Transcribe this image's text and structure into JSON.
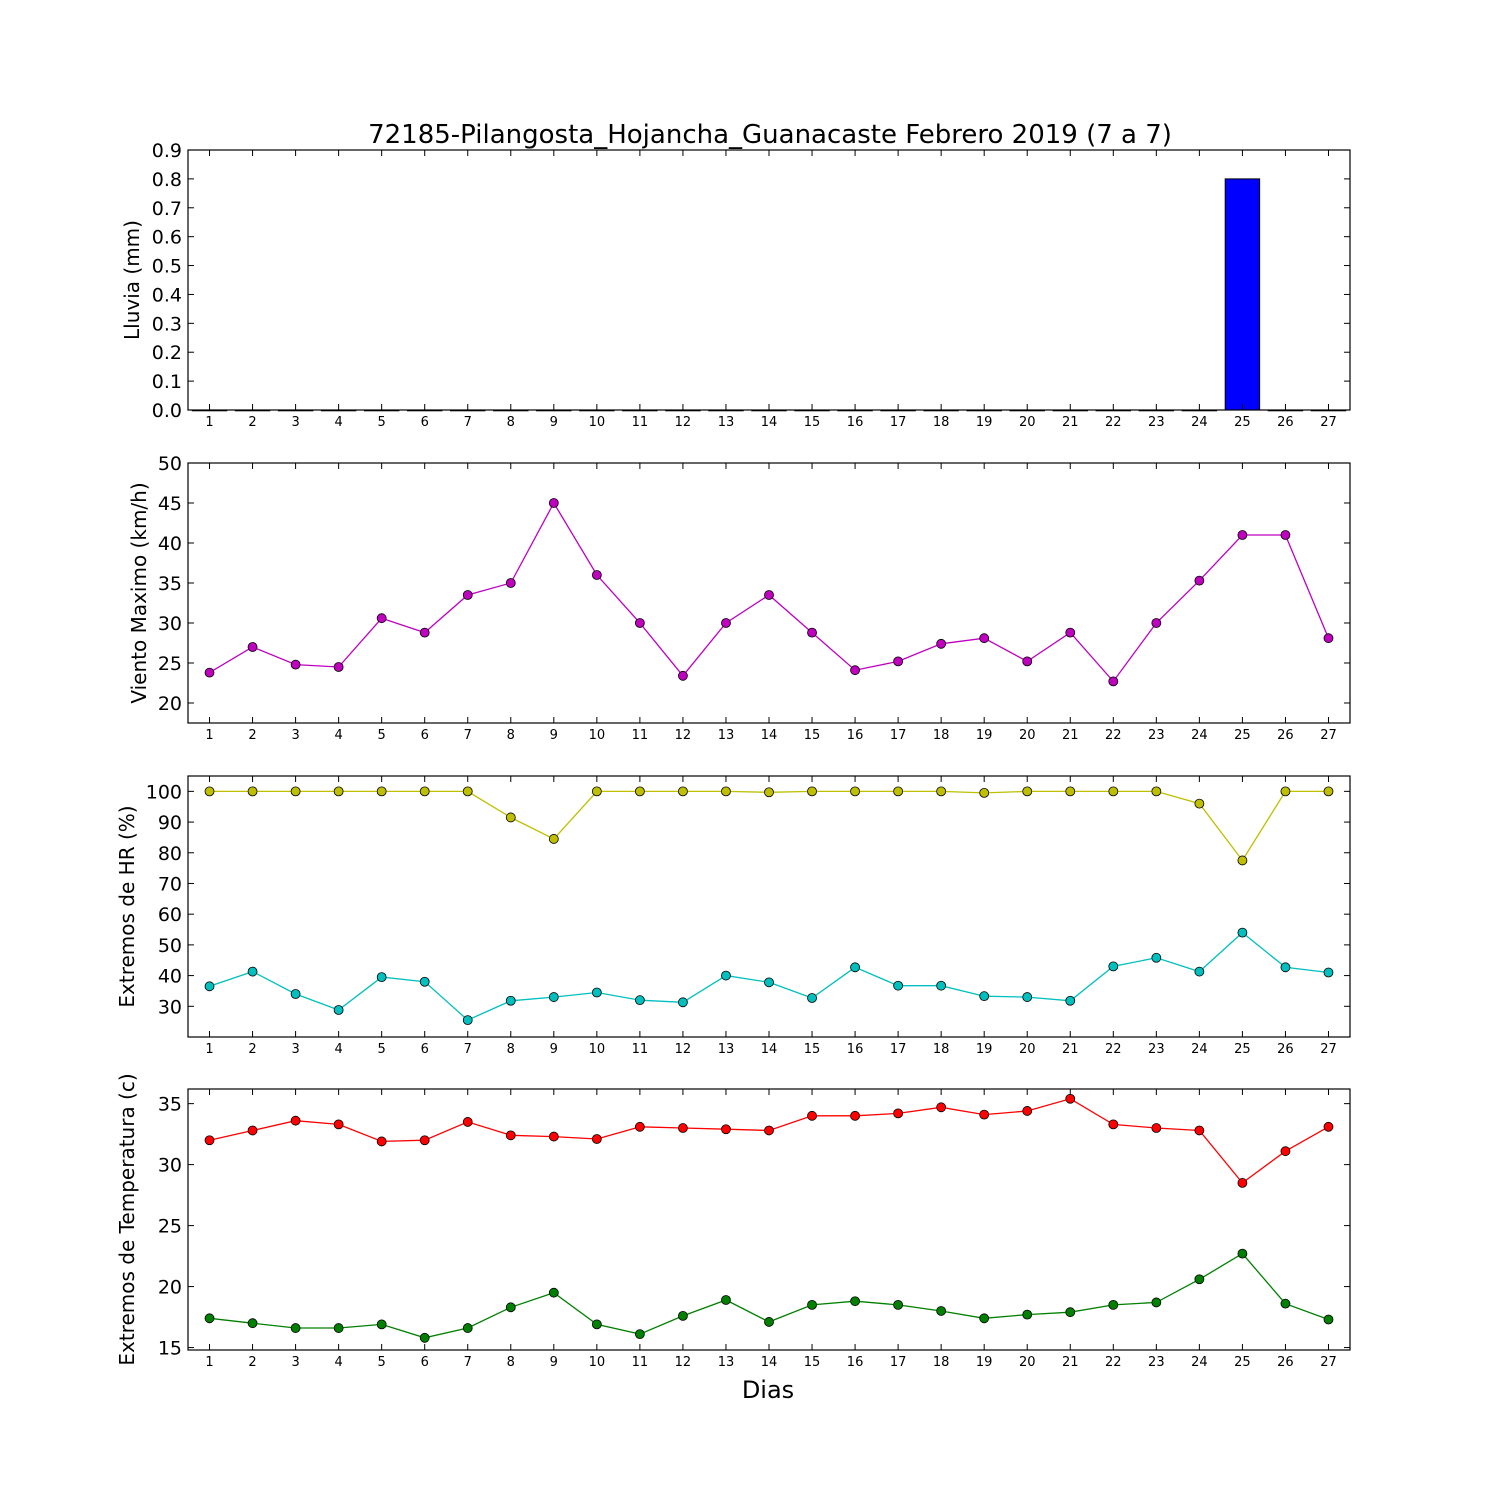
{
  "figure": {
    "title": "72185-Pilangosta_Hojancha_Guanacaste Febrero 2019  (7 a 7)",
    "xlabel": "Dias"
  },
  "chart_data": [
    {
      "type": "bar",
      "ylabel": "Lluvia (mm)",
      "x": [
        1,
        2,
        3,
        4,
        5,
        6,
        7,
        8,
        9,
        10,
        11,
        12,
        13,
        14,
        15,
        16,
        17,
        18,
        19,
        20,
        21,
        22,
        23,
        24,
        25,
        26,
        27
      ],
      "ylim": [
        0,
        0.9
      ],
      "yticks": [
        0.0,
        0.1,
        0.2,
        0.3,
        0.4,
        0.5,
        0.6,
        0.7,
        0.8,
        0.9
      ],
      "ytick_decimals": 1,
      "series": [
        {
          "color": "#0000ff",
          "values": [
            0,
            0,
            0,
            0,
            0,
            0,
            0,
            0,
            0,
            0,
            0,
            0,
            0,
            0,
            0,
            0,
            0,
            0,
            0,
            0,
            0,
            0,
            0,
            0,
            0.8,
            0,
            0
          ]
        }
      ]
    },
    {
      "type": "line",
      "ylabel": "Viento Maximo (km/h)",
      "x": [
        1,
        2,
        3,
        4,
        5,
        6,
        7,
        8,
        9,
        10,
        11,
        12,
        13,
        14,
        15,
        16,
        17,
        18,
        19,
        20,
        21,
        22,
        23,
        24,
        25,
        26,
        27
      ],
      "ylim": [
        17.5,
        50
      ],
      "yticks": [
        20,
        25,
        30,
        35,
        40,
        45,
        50
      ],
      "ytick_decimals": 0,
      "series": [
        {
          "color": "#bf00bf",
          "values": [
            23.8,
            27.0,
            24.8,
            24.5,
            30.6,
            28.8,
            33.5,
            35.0,
            45.0,
            36.0,
            30.0,
            23.4,
            30.0,
            33.5,
            28.8,
            24.1,
            25.2,
            27.4,
            28.1,
            25.2,
            28.8,
            22.7,
            30.0,
            35.3,
            41.0,
            41.0,
            28.1
          ]
        }
      ]
    },
    {
      "type": "line",
      "ylabel": "Extremos de HR (%)",
      "x": [
        1,
        2,
        3,
        4,
        5,
        6,
        7,
        8,
        9,
        10,
        11,
        12,
        13,
        14,
        15,
        16,
        17,
        18,
        19,
        20,
        21,
        22,
        23,
        24,
        25,
        26,
        27
      ],
      "ylim": [
        20,
        105
      ],
      "yticks": [
        30,
        40,
        50,
        60,
        70,
        80,
        90,
        100
      ],
      "ytick_decimals": 0,
      "series": [
        {
          "color": "#bfbf00",
          "values": [
            100,
            100,
            100,
            100,
            100,
            100,
            100,
            91.5,
            84.5,
            100,
            100,
            100,
            100,
            99.7,
            100,
            100,
            100,
            100,
            99.5,
            100,
            100,
            100,
            100,
            96,
            77.5,
            100,
            100
          ]
        },
        {
          "color": "#00bfbf",
          "values": [
            36.5,
            41.3,
            34,
            28.8,
            39.5,
            38,
            25.5,
            31.8,
            33,
            34.5,
            32,
            31.3,
            40,
            37.8,
            32.7,
            42.7,
            36.7,
            36.7,
            33.3,
            33,
            31.8,
            43,
            45.8,
            41.3,
            54,
            42.7,
            41
          ]
        }
      ]
    },
    {
      "type": "line",
      "ylabel": "Extremos de Temperatura (c)",
      "x": [
        1,
        2,
        3,
        4,
        5,
        6,
        7,
        8,
        9,
        10,
        11,
        12,
        13,
        14,
        15,
        16,
        17,
        18,
        19,
        20,
        21,
        22,
        23,
        24,
        25,
        26,
        27
      ],
      "ylim": [
        14.8,
        36.2
      ],
      "yticks": [
        15,
        20,
        25,
        30,
        35
      ],
      "ytick_decimals": 0,
      "series": [
        {
          "color": "#ff0000",
          "values": [
            32.0,
            32.8,
            33.6,
            33.3,
            31.9,
            32.0,
            33.5,
            32.4,
            32.3,
            32.1,
            33.1,
            33.0,
            32.9,
            32.8,
            34.0,
            34.0,
            34.2,
            34.7,
            34.1,
            34.4,
            35.4,
            33.3,
            33.0,
            32.8,
            28.5,
            31.1,
            33.1
          ]
        },
        {
          "color": "#008000",
          "values": [
            17.4,
            17.0,
            16.6,
            16.6,
            16.9,
            15.8,
            16.6,
            18.3,
            19.5,
            16.9,
            16.1,
            17.6,
            18.9,
            17.1,
            18.5,
            18.8,
            18.5,
            18.0,
            17.4,
            17.7,
            17.9,
            18.5,
            18.7,
            20.6,
            22.7,
            18.6,
            17.3
          ]
        }
      ]
    }
  ]
}
